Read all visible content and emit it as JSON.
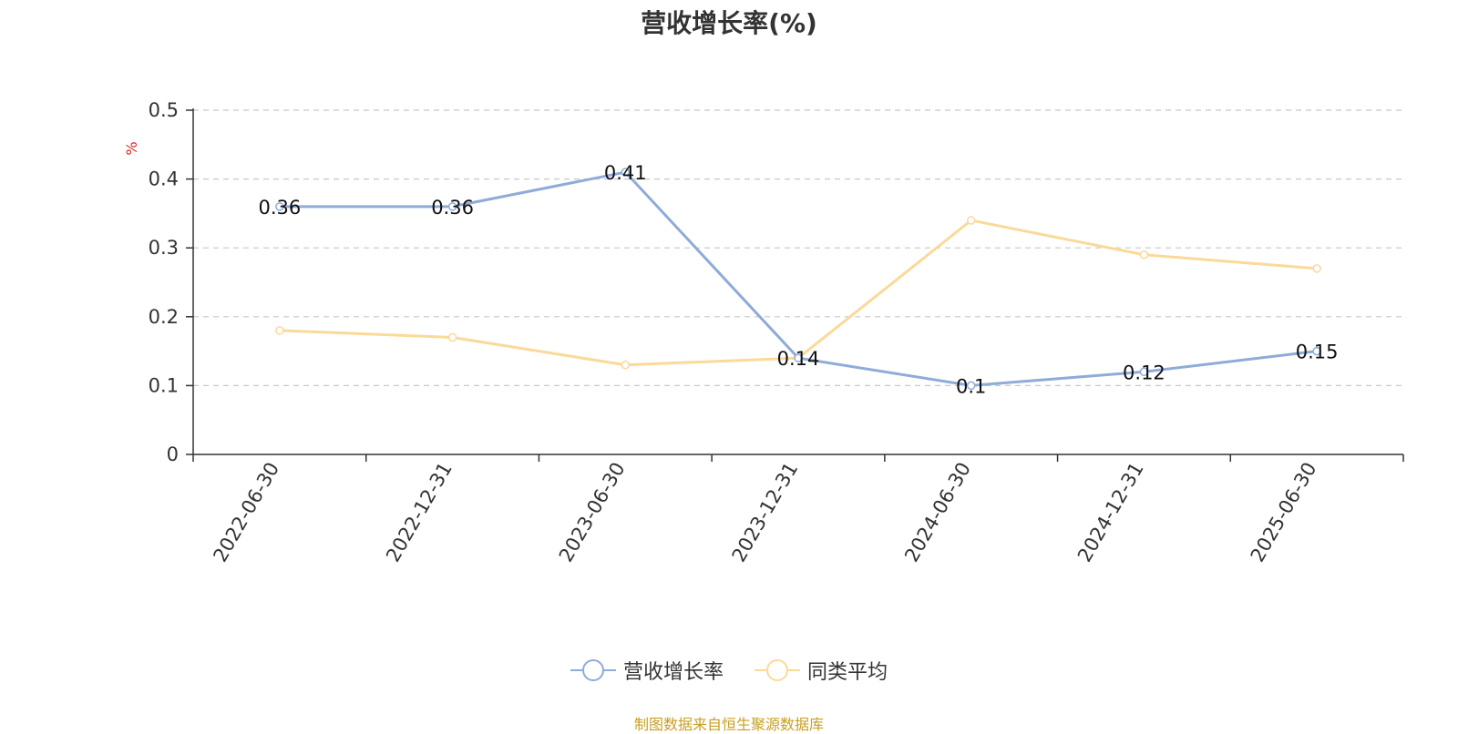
{
  "chart_data": {
    "type": "line",
    "title": "营收增长率(%)",
    "ylabel": "%",
    "ylim": [
      0,
      0.5
    ],
    "yticks": [
      0,
      0.1,
      0.2,
      0.3,
      0.4,
      0.5
    ],
    "ytick_labels": [
      "0",
      "0.1",
      "0.2",
      "0.3",
      "0.4",
      "0.5"
    ],
    "grid": true,
    "legend_position": "bottom",
    "categories": [
      "2022-06-30",
      "2022-12-31",
      "2023-06-30",
      "2023-12-31",
      "2024-06-30",
      "2024-12-31",
      "2025-06-30"
    ],
    "series": [
      {
        "name": "营收增长率",
        "color": "#8fabd8",
        "values": [
          0.36,
          0.36,
          0.41,
          0.14,
          0.1,
          0.12,
          0.15
        ],
        "labels": [
          "0.36",
          "0.36",
          "0.41",
          "0.14",
          "0.1",
          "0.12",
          "0.15"
        ]
      },
      {
        "name": "同类平均",
        "color": "#fbd999",
        "values": [
          0.18,
          0.17,
          0.13,
          0.14,
          0.34,
          0.29,
          0.27
        ]
      }
    ]
  },
  "source_note": "制图数据来自恒生聚源数据库"
}
